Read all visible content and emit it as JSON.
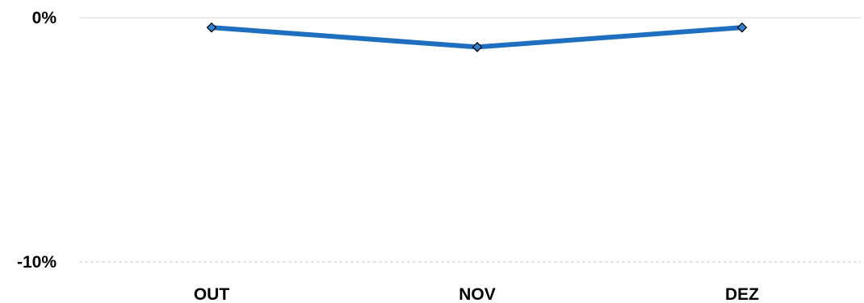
{
  "chart_data": {
    "type": "line",
    "categories": [
      "OUT",
      "NOV",
      "DEZ"
    ],
    "series": [
      {
        "values": [
          -0.4,
          -1.2,
          -0.4
        ]
      }
    ],
    "ylim": [
      -10,
      0
    ],
    "y_ticks": [
      {
        "value": 0,
        "label": "0%"
      },
      {
        "value": -10,
        "label": "-10%"
      }
    ],
    "title": "",
    "xlabel": "",
    "ylabel": "",
    "grid": true,
    "legend": "none",
    "colors": {
      "line": "#1f6fc0",
      "marker_fill": "#2e7fd0",
      "marker_stroke": "#000000",
      "grid_solid": "#d9d9d9",
      "grid_dashed": "#c8c8c8"
    }
  }
}
